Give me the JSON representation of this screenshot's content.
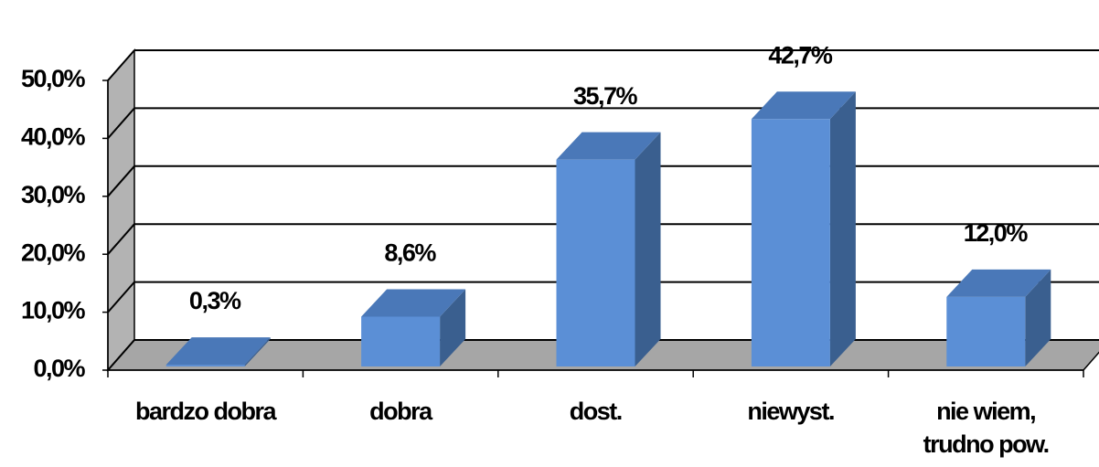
{
  "chart_data": {
    "type": "bar3d",
    "categories": [
      "bardzo dobra",
      "dobra",
      "dost.",
      "niewyst.",
      "nie wiem,\ntrudno pow."
    ],
    "values": [
      0.3,
      8.6,
      35.7,
      42.7,
      12.0
    ],
    "value_labels": [
      "0,3%",
      "8,6%",
      "35,7%",
      "42,7%",
      "12,0%"
    ],
    "color": "#5b8fd6",
    "ylim": [
      0,
      50
    ],
    "yticks": [
      {
        "value": 0,
        "label": "0,0%"
      },
      {
        "value": 10,
        "label": "10,0%"
      },
      {
        "value": 20,
        "label": "20,0%"
      },
      {
        "value": 30,
        "label": "30,0%"
      },
      {
        "value": 40,
        "label": "40,0%"
      },
      {
        "value": 50,
        "label": "50,0%"
      }
    ],
    "grid": true
  }
}
